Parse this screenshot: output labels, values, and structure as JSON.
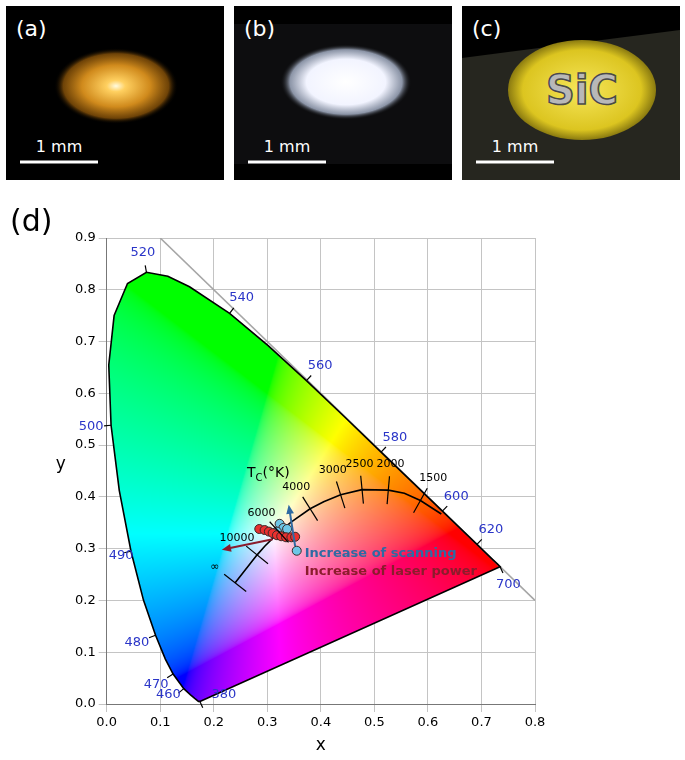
{
  "panels": [
    {
      "label": "(a)",
      "scale_bar": "1 mm"
    },
    {
      "label": "(b)",
      "scale_bar": "1 mm"
    },
    {
      "label": "(c)",
      "scale_bar": "1 mm",
      "text": "SiC"
    }
  ],
  "chart_data": {
    "type": "scatter",
    "panel_label": "(d)",
    "xlabel": "x",
    "ylabel": "y",
    "xlim": [
      0,
      0.8
    ],
    "ylim": [
      0,
      0.9
    ],
    "xticks": [
      {
        "value": 0,
        "label": "0.0"
      },
      0.1,
      0.2,
      0.3,
      0.4,
      0.5,
      0.6,
      0.7,
      0.8
    ],
    "yticks": [
      {
        "value": 0,
        "label": "0.0"
      },
      0.1,
      0.2,
      0.3,
      0.4,
      0.5,
      0.6,
      0.7,
      0.8,
      0.9
    ],
    "grid": true,
    "series": [
      {
        "type": "line",
        "color": "#000000",
        "line_style": "solid",
        "x": [
          0.1741,
          0.1714,
          0.1644,
          0.1566,
          0.144,
          0.1241,
          0.1096,
          0.0913,
          0.0687,
          0.0454,
          0.0235,
          0.0082,
          0.0039,
          0.0139,
          0.0389,
          0.0743,
          0.1142,
          0.1547,
          0.2296,
          0.3016,
          0.3731,
          0.4441,
          0.5125,
          0.5752,
          0.627,
          0.6658,
          0.6915,
          0.719,
          0.73,
          0.7347,
          0.1741
        ],
        "y": [
          0.005,
          0.0051,
          0.0109,
          0.0177,
          0.0297,
          0.0578,
          0.0868,
          0.1327,
          0.2007,
          0.295,
          0.4127,
          0.5384,
          0.6548,
          0.7502,
          0.812,
          0.8338,
          0.8262,
          0.8059,
          0.7543,
          0.6923,
          0.6245,
          0.5547,
          0.4866,
          0.4242,
          0.3725,
          0.334,
          0.3083,
          0.2809,
          0.27,
          0.2653,
          0.005
        ],
        "point_labels": [
          380,
          null,
          null,
          null,
          460,
          470,
          null,
          480,
          null,
          490,
          null,
          500,
          null,
          null,
          null,
          520,
          null,
          null,
          540,
          null,
          560,
          null,
          580,
          null,
          600,
          null,
          620,
          null,
          null,
          700,
          null
        ]
      },
      {
        "type": "line",
        "color": "#a6a6a6",
        "line_style": "solid",
        "x": [
          0.1,
          0.8
        ],
        "y": [
          0.9,
          0.2
        ]
      },
      {
        "type": "line",
        "color": "#000000",
        "line_style": "solid",
        "x": [
          0.24,
          0.281,
          0.2952,
          0.322,
          0.3451,
          0.38,
          0.4053,
          0.437,
          0.477,
          0.526,
          0.556,
          0.586,
          0.625
        ],
        "y": [
          0.234,
          0.288,
          0.3048,
          0.332,
          0.3516,
          0.377,
          0.3907,
          0.404,
          0.414,
          0.413,
          0.407,
          0.393,
          0.367
        ],
        "point_labels": [
          "∞",
          10000,
          null,
          6000,
          null,
          4000,
          null,
          3000,
          2500,
          2000,
          null,
          1500,
          null
        ]
      },
      {
        "type": "scatter",
        "color": "#e8312f",
        "marker": "circle",
        "x": [
          0.285,
          0.295,
          0.303,
          0.31,
          0.318,
          0.326,
          0.335,
          0.345,
          0.352
        ],
        "y": [
          0.338,
          0.336,
          0.333,
          0.33,
          0.326,
          0.324,
          0.322,
          0.322,
          0.323
        ]
      },
      {
        "type": "scatter",
        "color": "#6ec6e6",
        "marker": "circle",
        "x": [
          0.323,
          0.33,
          0.318,
          0.337,
          0.355
        ],
        "y": [
          0.348,
          0.34,
          0.333,
          0.338,
          0.296
        ]
      }
    ],
    "annotations": [
      {
        "text": "T",
        "subscript": "C",
        "text_after": "(°K)",
        "x": 0.262,
        "y": 0.445,
        "color": "#000000"
      },
      {
        "text": "Increase of scanning",
        "x": 0.37,
        "y": 0.29,
        "color": "#2f6aa3",
        "arrow_from": [
          0.352,
          0.305
        ],
        "arrow_to": [
          0.34,
          0.385
        ]
      },
      {
        "text": "Increase of laser power",
        "x": 0.37,
        "y": 0.255,
        "color": "#8b1c2c",
        "arrow_from": [
          0.31,
          0.318
        ],
        "arrow_to": [
          0.215,
          0.298
        ]
      }
    ]
  }
}
